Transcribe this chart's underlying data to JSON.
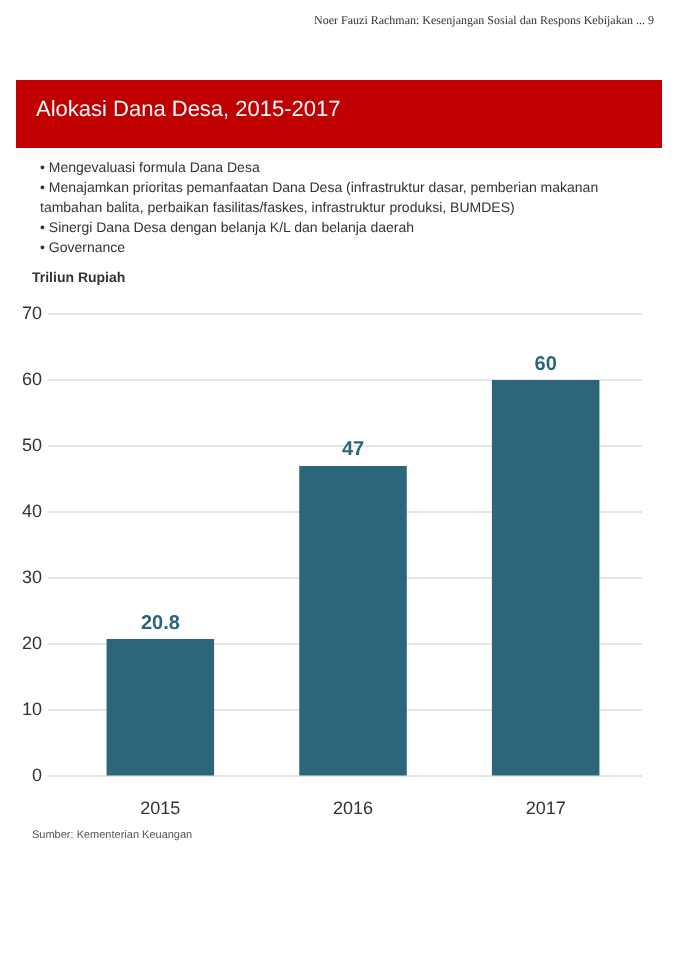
{
  "chart_data": {
    "type": "bar",
    "title": "Alokasi Dana Desa, 2015-2017",
    "subtitle": "Noer Fauzi Rachman: Kesenjangan Sosial dan Respons Kebijakan ... 9",
    "annotations": [
      "• Mengevaluasi formula Dana Desa",
      "• Menajamkan prioritas pemanfaatan Dana Desa (infrastruktur dasar, pemberian makanan tambahan balita, perbaikan fasilitas/faskes, infrastruktur produksi, BUMDES)",
      "• Sinergi Dana Desa dengan belanja K/L dan belanja daerah",
      "• Governance",
      "Sumber: Kementerian Keuangan"
    ],
    "ylabel": "Triliun Rupiah",
    "categories": [
      "2015",
      "2016",
      "2017"
    ],
    "values": [
      20.8,
      47,
      60
    ],
    "color": "#2b667a",
    "data_labels": true,
    "ylim": [
      0,
      70
    ],
    "yticks": [
      0,
      10,
      20,
      30,
      40,
      50,
      60,
      70
    ],
    "grid": "y",
    "legend": false
  }
}
